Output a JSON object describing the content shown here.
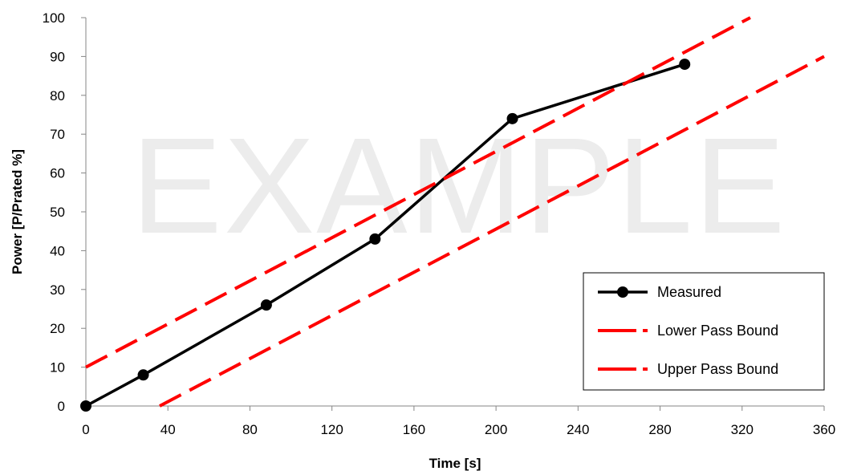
{
  "chart_data": {
    "type": "line",
    "title": "",
    "xlabel": "Time [s]",
    "ylabel": "Power [P/Prated %]",
    "xlim": [
      0,
      360
    ],
    "ylim": [
      0,
      100
    ],
    "x_ticks": [
      0,
      40,
      80,
      120,
      160,
      200,
      240,
      280,
      320,
      360
    ],
    "y_ticks": [
      0,
      10,
      20,
      30,
      40,
      50,
      60,
      70,
      80,
      90,
      100
    ],
    "grid": false,
    "legend_position": "bottom-right",
    "watermark": "EXAMPLE",
    "series": [
      {
        "name": "Measured",
        "style": "solid-marker",
        "color": "#000000",
        "points": [
          [
            0,
            0
          ],
          [
            28,
            8
          ],
          [
            88,
            26
          ],
          [
            141,
            43
          ],
          [
            208,
            74
          ],
          [
            292,
            88
          ]
        ]
      },
      {
        "name": "Lower Pass Bound",
        "style": "dashed",
        "color": "#ff0000",
        "points": [
          [
            0,
            10
          ],
          [
            324,
            100
          ]
        ]
      },
      {
        "name": "Upper Pass Bound",
        "style": "dashed",
        "color": "#ff0000",
        "points": [
          [
            36,
            0
          ],
          [
            360,
            90
          ]
        ]
      }
    ]
  }
}
